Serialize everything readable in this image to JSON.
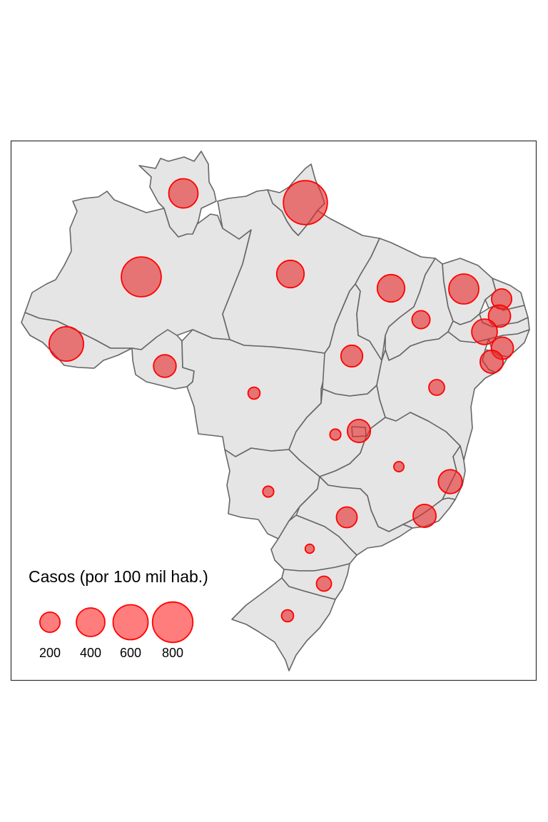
{
  "legend": {
    "title": "Casos (por 100 mil hab.)",
    "items": [
      {
        "value": 200,
        "label": "200"
      },
      {
        "value": 400,
        "label": "400"
      },
      {
        "value": 600,
        "label": "600"
      },
      {
        "value": 800,
        "label": "800"
      }
    ]
  },
  "colors": {
    "land_fill": "#e5e5e5",
    "border": "#666666",
    "bubble_fill": "#e62828",
    "bubble_stroke": "#ff0000",
    "frame": "#333333"
  },
  "chart_data": {
    "type": "proportional-symbol-map",
    "region": "Brasil (unidades da federação)",
    "size_variable": "Casos (por 100 mil hab.)",
    "legend_placement": "bottom-left",
    "points": [
      {
        "state": "RR",
        "value": 420
      },
      {
        "state": "AP",
        "value": 950
      },
      {
        "state": "AM",
        "value": 780
      },
      {
        "state": "PA",
        "value": 370
      },
      {
        "state": "AC",
        "value": 580
      },
      {
        "state": "RO",
        "value": 250
      },
      {
        "state": "MT",
        "value": 70
      },
      {
        "state": "MA",
        "value": 370
      },
      {
        "state": "PI",
        "value": 160
      },
      {
        "state": "CE",
        "value": 440
      },
      {
        "state": "RN",
        "value": 200
      },
      {
        "state": "PB",
        "value": 240
      },
      {
        "state": "PE",
        "value": 320
      },
      {
        "state": "AL",
        "value": 240
      },
      {
        "state": "SE",
        "value": 260
      },
      {
        "state": "TO",
        "value": 230
      },
      {
        "state": "BA",
        "value": 120
      },
      {
        "state": "GO",
        "value": 60
      },
      {
        "state": "DF",
        "value": 260
      },
      {
        "state": "MG",
        "value": 50
      },
      {
        "state": "ES",
        "value": 280
      },
      {
        "state": "RJ",
        "value": 260
      },
      {
        "state": "MS",
        "value": 60
      },
      {
        "state": "SP",
        "value": 210
      },
      {
        "state": "PR",
        "value": 40
      },
      {
        "state": "SC",
        "value": 110
      },
      {
        "state": "RS",
        "value": 70
      }
    ]
  }
}
